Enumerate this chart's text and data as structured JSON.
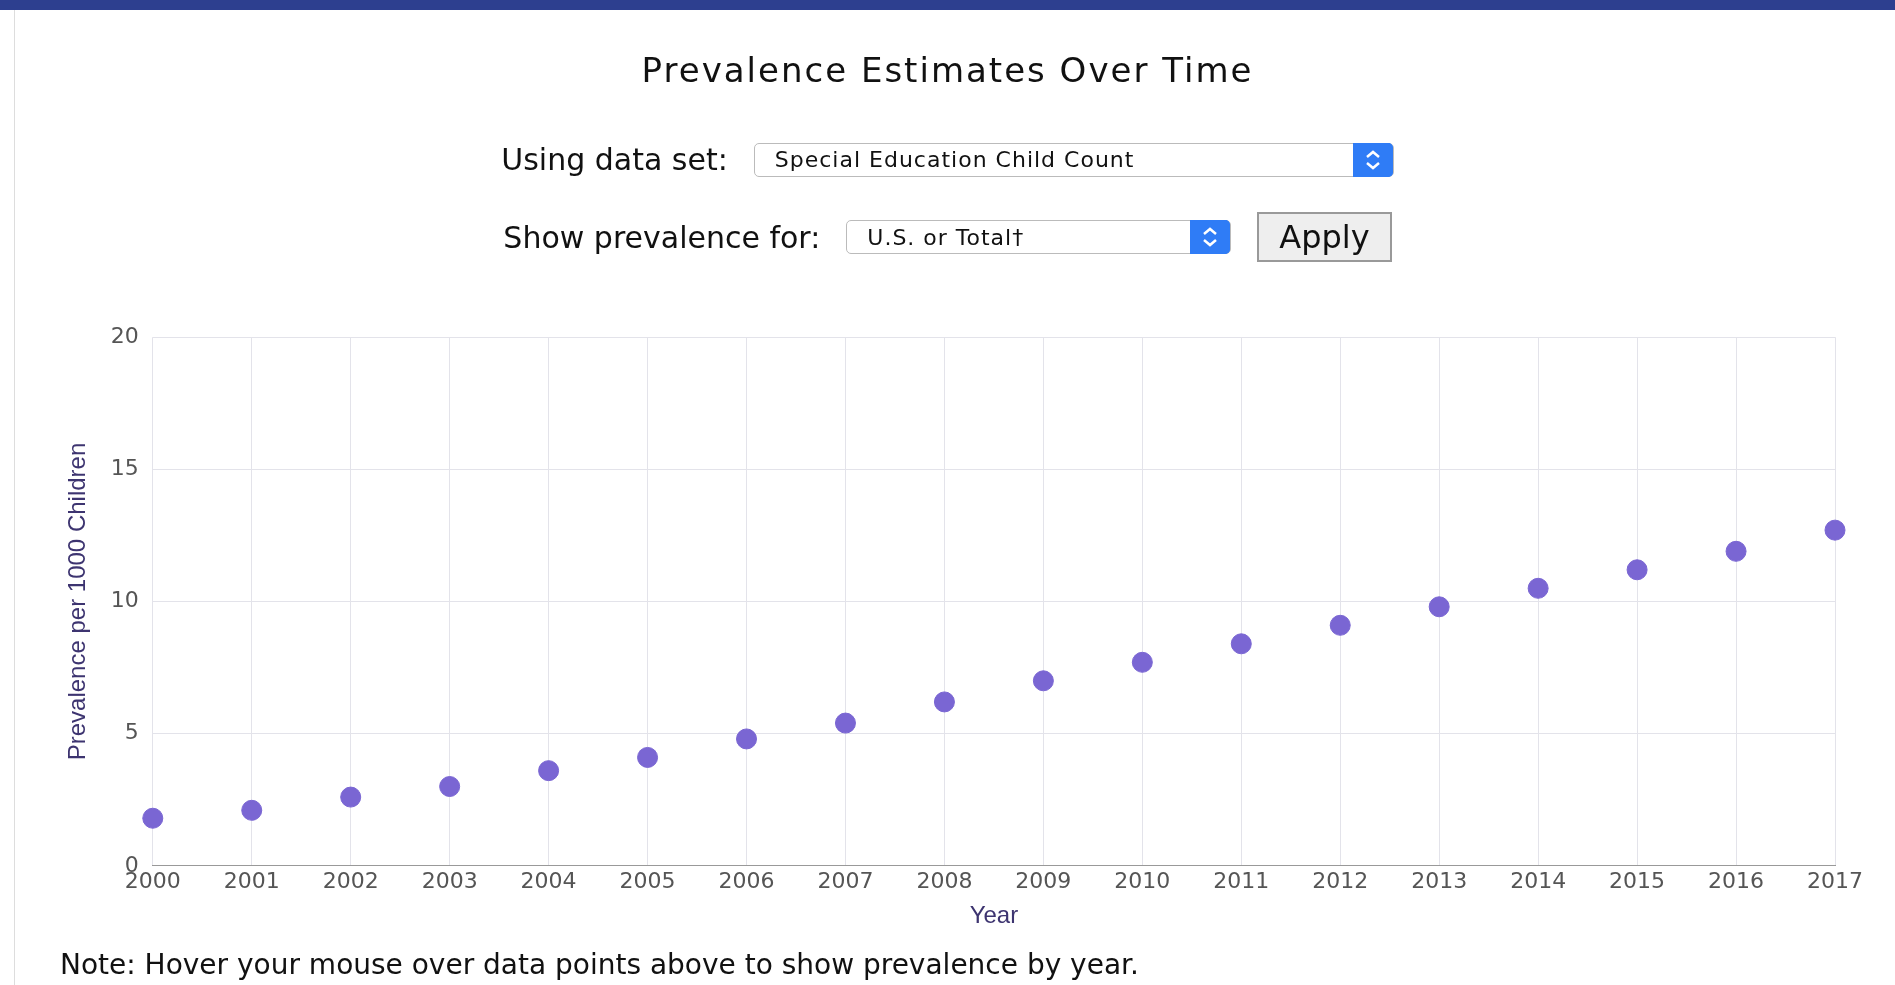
{
  "chart_data": {
    "type": "scatter",
    "title": "Prevalence Estimates Over Time",
    "xlabel": "Year",
    "ylabel": "Prevalence per 1000 Children",
    "annotations": [
      "Using data set:",
      "Special Education Child Count",
      "Show prevalence for:",
      "U.S. or Total†",
      "Apply",
      "Note: Hover your mouse over data points above to show prevalence by year."
    ],
    "x": [
      2000,
      2001,
      2002,
      2003,
      2004,
      2005,
      2006,
      2007,
      2008,
      2009,
      2010,
      2011,
      2012,
      2013,
      2014,
      2015,
      2016,
      2017
    ],
    "series": [
      {
        "color": "#7a66d3",
        "values": [
          1.8,
          2.1,
          2.6,
          3.0,
          3.6,
          4.1,
          4.8,
          5.4,
          6.2,
          7.0,
          7.7,
          8.4,
          9.1,
          9.8,
          10.5,
          11.2,
          11.9,
          12.7
        ]
      }
    ],
    "xlim": [
      2000,
      2017
    ],
    "xticks": [
      2000,
      2001,
      2002,
      2003,
      2004,
      2005,
      2006,
      2007,
      2008,
      2009,
      2010,
      2011,
      2012,
      2013,
      2014,
      2015,
      2016,
      2017
    ],
    "ylim": [
      0,
      20
    ],
    "yticks": [
      0,
      5,
      10,
      15,
      20
    ],
    "grid": true,
    "legend": false,
    "marker": "circle"
  }
}
